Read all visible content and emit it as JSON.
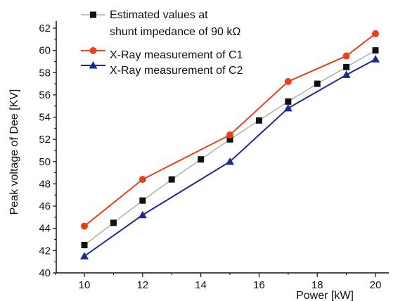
{
  "chart_data": {
    "type": "line",
    "xlabel": "Power [kW]",
    "ylabel": "Peak voltage of Dee [KV]",
    "xlim": [
      9,
      20.5
    ],
    "ylim": [
      40,
      63
    ],
    "x_ticks": [
      10,
      12,
      14,
      16,
      18,
      20
    ],
    "y_ticks": [
      40,
      42,
      44,
      46,
      48,
      50,
      52,
      54,
      56,
      58,
      60,
      62
    ],
    "grid": false,
    "legend_position": "top-left",
    "series": [
      {
        "name": "Estimated values at shunt impedance of 90 kΩ",
        "legend_lines": [
          "Estimated values at",
          "shunt impedance of 90 kΩ"
        ],
        "color": "#111111",
        "line_color": "#aaaaaa",
        "marker": "square",
        "x": [
          10,
          11,
          12,
          13,
          14,
          15,
          16,
          17,
          18,
          19,
          20
        ],
        "y": [
          42.5,
          44.5,
          46.5,
          48.4,
          50.2,
          52.0,
          53.7,
          55.4,
          57.0,
          58.5,
          60.0
        ]
      },
      {
        "name": "X-Ray measurement of C1",
        "legend_lines": [
          "X-Ray measurement of C1"
        ],
        "color": "#e8401c",
        "line_color": "#e8401c",
        "marker": "circle",
        "x": [
          10,
          12,
          15,
          17,
          19,
          20
        ],
        "y": [
          44.2,
          48.4,
          52.4,
          57.2,
          59.5,
          61.5
        ]
      },
      {
        "name": "X-Ray measurement of C2",
        "legend_lines": [
          "X-Ray measurement of C2"
        ],
        "color": "#1c2a8c",
        "line_color": "#1c2a8c",
        "marker": "triangle",
        "x": [
          10,
          12,
          15,
          17,
          19,
          20
        ],
        "y": [
          41.5,
          45.2,
          50.0,
          54.8,
          57.8,
          59.2
        ]
      }
    ]
  }
}
